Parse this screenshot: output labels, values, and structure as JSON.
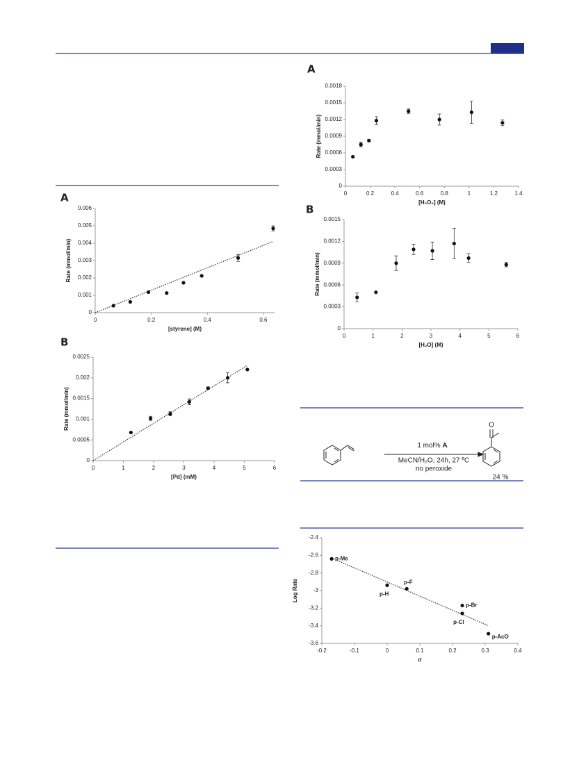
{
  "chart_data": [
    {
      "type": "scatter",
      "panel": "A",
      "xlabel": "[styrene]  (M)",
      "ylabel": "Rate (mmol/min)",
      "x": [
        0.065,
        0.125,
        0.19,
        0.255,
        0.315,
        0.38,
        0.51,
        0.635
      ],
      "values": [
        0.0004,
        0.00062,
        0.00118,
        0.00113,
        0.00172,
        0.00212,
        0.00315,
        0.00485
      ],
      "errors": [
        null,
        null,
        null,
        null,
        null,
        null,
        0.0002,
        0.00015
      ],
      "trendline": {
        "x": [
          0,
          0.635
        ],
        "values": [
          0,
          0.0041
        ]
      },
      "color": "#111",
      "xlim": [
        0,
        0.64
      ],
      "xticks": [
        0,
        0.2,
        0.4,
        0.6
      ],
      "ylim": [
        0,
        0.006
      ],
      "yticks": [
        0,
        0.001,
        0.002,
        0.003,
        0.004,
        0.005,
        0.006
      ]
    },
    {
      "type": "scatter",
      "panel": "B",
      "xlabel": "[Pd]  (mM)",
      "ylabel": "Rate (mmol/min)",
      "x": [
        1.25,
        1.9,
        2.55,
        3.18,
        3.8,
        4.45,
        5.1
      ],
      "values": [
        0.00068,
        0.00102,
        0.00113,
        0.00142,
        0.00175,
        0.002,
        0.0022
      ],
      "errors": [
        null,
        5e-05,
        5e-05,
        7e-05,
        3e-05,
        0.00012,
        null
      ],
      "trendline": {
        "x": [
          0,
          5.1
        ],
        "values": [
          0,
          0.0023
        ]
      },
      "color": "#111",
      "xlim": [
        0,
        6
      ],
      "xticks": [
        0,
        1,
        2,
        3,
        4,
        5,
        6
      ],
      "ylim": [
        0,
        0.0025
      ],
      "yticks": [
        0,
        0.0005,
        0.001,
        0.0015,
        0.002,
        0.0025
      ]
    },
    {
      "type": "scatter",
      "panel": "A",
      "xlabel": "[H₂O₂]  (M)",
      "ylabel": "Rate (mmol/min)",
      "x": [
        0.06,
        0.125,
        0.19,
        0.25,
        0.51,
        0.76,
        1.02,
        1.27
      ],
      "values": [
        0.00053,
        0.00075,
        0.00082,
        0.00118,
        0.00135,
        0.0012,
        0.00133,
        0.00114
      ],
      "errors": [
        null,
        4e-05,
        2e-05,
        7e-05,
        4e-05,
        0.0001,
        0.0002,
        5e-05
      ],
      "color": "#111",
      "xlim": [
        0,
        1.4
      ],
      "xticks": [
        0,
        0.2,
        0.4,
        0.6,
        0.8,
        1,
        1.2,
        1.4
      ],
      "ylim": [
        0,
        0.0018
      ],
      "yticks": [
        0,
        0.0003,
        0.0006,
        0.0009,
        0.0012,
        0.0015,
        0.0018
      ]
    },
    {
      "type": "scatter",
      "panel": "B",
      "xlabel": "[H₂O]  (M)",
      "ylabel": "Rate (mmol/min)",
      "x": [
        0.45,
        1.1,
        1.8,
        2.4,
        3.05,
        3.8,
        4.3,
        5.6
      ],
      "values": [
        0.00043,
        0.0005,
        0.0009,
        0.00109,
        0.00107,
        0.00117,
        0.00097,
        0.00088
      ],
      "errors": [
        6e-05,
        null,
        0.0001,
        7e-05,
        0.00012,
        0.00021,
        6e-05,
        3e-05
      ],
      "color": "#111",
      "xlim": [
        0,
        6
      ],
      "xticks": [
        0,
        1,
        2,
        3,
        4,
        5,
        6
      ],
      "ylim": [
        0,
        0.0015
      ],
      "yticks": [
        0,
        0.0003,
        0.0006,
        0.0009,
        0.0012,
        0.0015
      ]
    },
    {
      "type": "scatter",
      "xlabel": "σ",
      "ylabel": "Log Rate",
      "x": [
        -0.17,
        0,
        0.06,
        0.23,
        0.23,
        0.31
      ],
      "values": [
        -2.64,
        -2.94,
        -2.98,
        -3.26,
        -3.17,
        -3.49
      ],
      "point_labels": [
        "p-Me",
        "p-H",
        "p-F",
        "p-Cl",
        "p-Br",
        "p-AcO"
      ],
      "trendline": {
        "x": [
          -0.17,
          0.31
        ],
        "values": [
          -2.63,
          -3.4
        ]
      },
      "color": "#111",
      "xlim": [
        -0.2,
        0.4
      ],
      "xticks": [
        -0.2,
        -0.1,
        0,
        0.1,
        0.2,
        0.3,
        0.4
      ],
      "ylim": [
        -3.6,
        -2.4
      ],
      "yticks": [
        -3.6,
        -3.4,
        -3.2,
        -3,
        -2.8,
        -2.6,
        -2.4
      ]
    }
  ],
  "scheme": {
    "reagent": "1 mol%",
    "catalyst": "A",
    "conditions": "MeCN/H₂O, 24h, 27 ºC",
    "note": "no peroxide",
    "yield": "24 %"
  }
}
